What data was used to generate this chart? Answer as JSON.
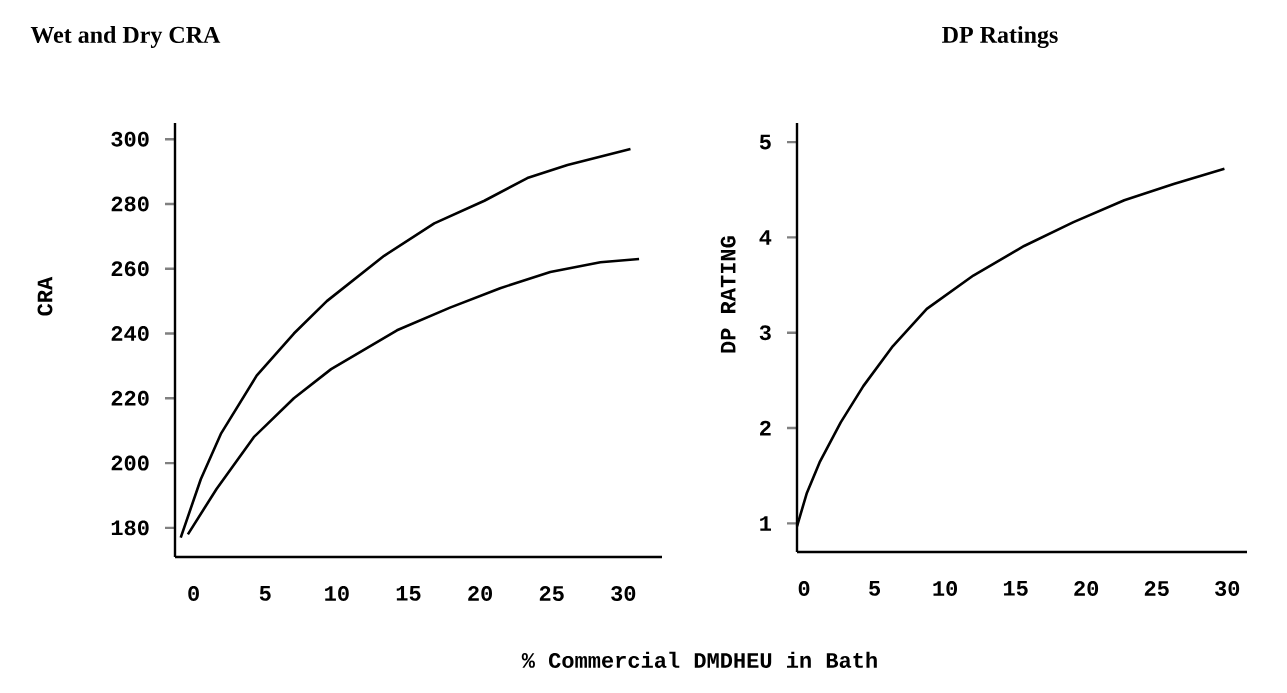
{
  "chart_data": [
    {
      "type": "line",
      "title": "Wet and Dry  CRA",
      "ylabel": "CRA",
      "xlabel": "% Commercial DMDHEU in Bath",
      "xlim": [
        -1.3,
        32.7
      ],
      "ylim": [
        171,
        305
      ],
      "xticks": [
        0,
        5,
        10,
        15,
        20,
        25,
        30
      ],
      "yticks": [
        180,
        200,
        220,
        240,
        260,
        280,
        300
      ],
      "series": [
        {
          "color": "#000000",
          "x": [
            -0.9,
            0.5,
            1.9,
            4.4,
            7.0,
            9.3,
            13.3,
            16.8,
            20.3,
            23.3,
            26.1,
            30.5
          ],
          "values": [
            177,
            195,
            209,
            227,
            240,
            250,
            264,
            274,
            281,
            288,
            292,
            297
          ]
        },
        {
          "color": "#000000",
          "x": [
            -0.4,
            1.6,
            4.2,
            7.0,
            9.6,
            14.2,
            17.9,
            21.4,
            24.9,
            28.4,
            31.1
          ],
          "values": [
            178,
            192,
            208,
            220,
            229,
            241,
            248,
            254,
            259,
            262,
            263
          ]
        }
      ]
    },
    {
      "type": "line",
      "title": "DP Ratings",
      "ylabel": "DP RATING",
      "xlim": [
        -0.5,
        31.4
      ],
      "ylim": [
        0.7,
        5.2
      ],
      "xticks": [
        0,
        5,
        10,
        15,
        20,
        25,
        30
      ],
      "yticks": [
        1,
        2,
        3,
        4,
        5
      ],
      "series": [
        {
          "color": "#000000",
          "x": [
            -0.5,
            0.2,
            1.1,
            2.6,
            4.2,
            6.3,
            8.7,
            12.0,
            15.6,
            19.1,
            22.7,
            26.2,
            29.8
          ],
          "values": [
            0.97,
            1.32,
            1.64,
            2.06,
            2.44,
            2.86,
            3.25,
            3.6,
            3.91,
            4.16,
            4.39,
            4.56,
            4.72
          ]
        }
      ]
    }
  ]
}
